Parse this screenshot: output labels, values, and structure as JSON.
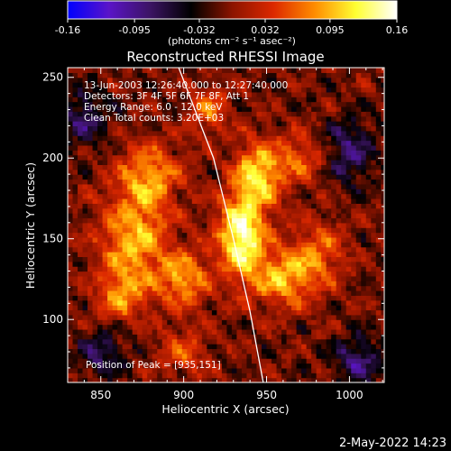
{
  "chart_data": {
    "type": "heatmap",
    "title": "Reconstructed RHESSI Image",
    "xlabel": "Heliocentric X (arcsec)",
    "ylabel": "Heliocentric Y (arcsec)",
    "xlim": [
      830,
      1021
    ],
    "ylim": [
      61,
      256
    ],
    "x_ticks": [
      850,
      900,
      950,
      1000
    ],
    "y_ticks": [
      100,
      150,
      200,
      250
    ],
    "x_tick_labels": [
      "850",
      "900",
      "950",
      "1000"
    ],
    "y_tick_labels": [
      "100",
      "150",
      "200",
      "250"
    ],
    "colorbar": {
      "range": [
        -0.16,
        0.16
      ],
      "ticks": [
        -0.16,
        -0.095,
        -0.032,
        0.032,
        0.095,
        0.16
      ],
      "tick_labels": [
        "-0.16",
        "-0.095",
        "-0.032",
        "0.032",
        "0.095",
        "0.16"
      ],
      "unit_label": "(photons cm⁻² s⁻¹ asec⁻²)",
      "stops": [
        "#0000ff",
        "#5a14c8",
        "#3c1464",
        "#000000",
        "#8c1400",
        "#dc2800",
        "#ff8c00",
        "#ffff32",
        "#ffffff"
      ]
    },
    "annotations": {
      "time": "13-Jun-2003 12:26:40.000 to 12:27:40.000",
      "detectors": "Detectors: 3F 4F 5F 6F 7F 8F, Att 1",
      "energy": "Energy Range: 6.0 - 12.0 keV",
      "clean": "Clean     Total counts: 3.20E+03",
      "peak": "Position of Peak = [935,151]"
    },
    "peak": {
      "x": 935,
      "y": 151
    },
    "blobs": [
      {
        "x": 935,
        "y": 151,
        "amp": 1.0,
        "sx": 10,
        "sy": 18
      },
      {
        "x": 945,
        "y": 190,
        "amp": 0.75,
        "sx": 10,
        "sy": 14
      },
      {
        "x": 960,
        "y": 125,
        "amp": 0.6,
        "sx": 12,
        "sy": 12
      },
      {
        "x": 980,
        "y": 140,
        "amp": 0.45,
        "sx": 12,
        "sy": 14
      },
      {
        "x": 870,
        "y": 150,
        "amp": 0.65,
        "sx": 14,
        "sy": 22
      },
      {
        "x": 880,
        "y": 190,
        "amp": 0.55,
        "sx": 12,
        "sy": 14
      },
      {
        "x": 900,
        "y": 125,
        "amp": 0.6,
        "sx": 10,
        "sy": 12
      },
      {
        "x": 862,
        "y": 115,
        "amp": 0.45,
        "sx": 10,
        "sy": 10
      },
      {
        "x": 915,
        "y": 230,
        "amp": 0.45,
        "sx": 8,
        "sy": 10
      },
      {
        "x": 900,
        "y": 80,
        "amp": 0.35,
        "sx": 10,
        "sy": 10
      },
      {
        "x": 970,
        "y": 200,
        "amp": 0.4,
        "sx": 10,
        "sy": 10
      },
      {
        "x": 1005,
        "y": 75,
        "amp": -0.5,
        "sx": 10,
        "sy": 10
      },
      {
        "x": 1000,
        "y": 205,
        "amp": -0.45,
        "sx": 10,
        "sy": 14
      },
      {
        "x": 840,
        "y": 225,
        "amp": -0.4,
        "sx": 10,
        "sy": 12
      },
      {
        "x": 850,
        "y": 80,
        "amp": -0.4,
        "sx": 10,
        "sy": 10
      }
    ],
    "limb_points": [
      [
        897,
        256
      ],
      [
        918,
        200
      ],
      [
        930,
        150
      ],
      [
        940,
        105
      ],
      [
        948,
        61
      ]
    ],
    "timestamp": "2-May-2022 14:23"
  }
}
